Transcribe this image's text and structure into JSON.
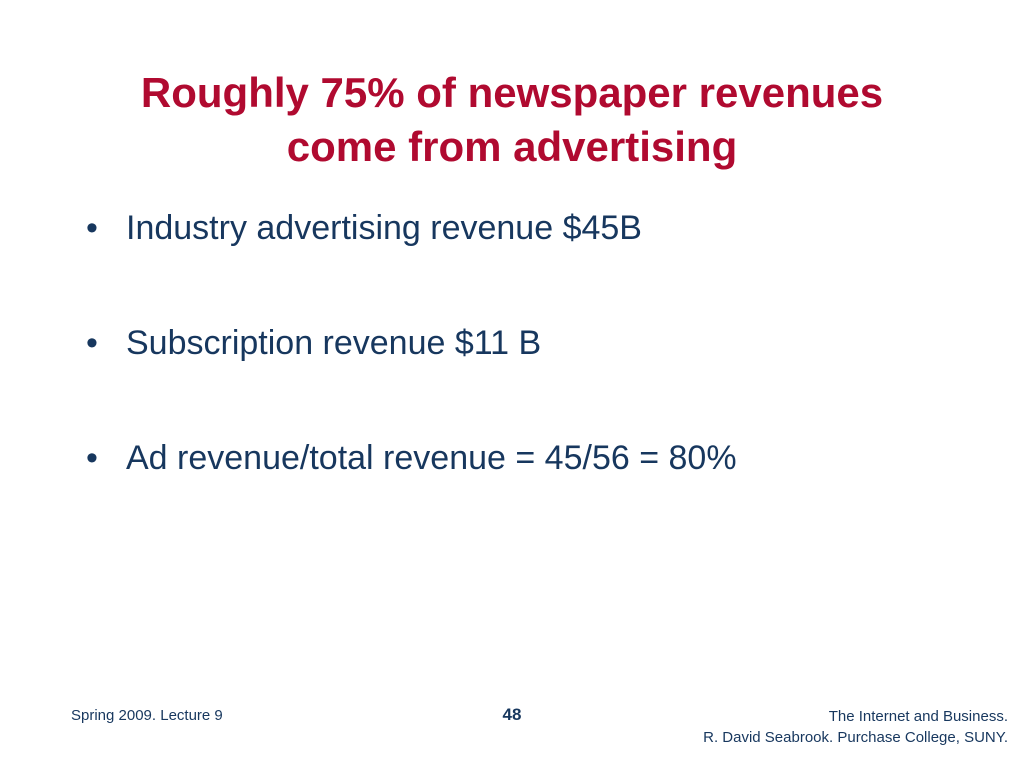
{
  "slide": {
    "title_line1": "Roughly 75% of newspaper revenues",
    "title_line2": "come from advertising",
    "bullet_marker": "•",
    "bullets": [
      "Industry advertising revenue $45B",
      "Subscription revenue $11 B",
      "Ad revenue/total revenue = 45/56 = 80%"
    ]
  },
  "footer": {
    "left": "Spring 2009. Lecture 9",
    "page_number": "48",
    "right_line1": "The Internet and Business.",
    "right_line2": "R. David Seabrook. Purchase College, SUNY."
  },
  "colors": {
    "title": "#b00a30",
    "body_text": "#17375e",
    "background": "#ffffff"
  }
}
